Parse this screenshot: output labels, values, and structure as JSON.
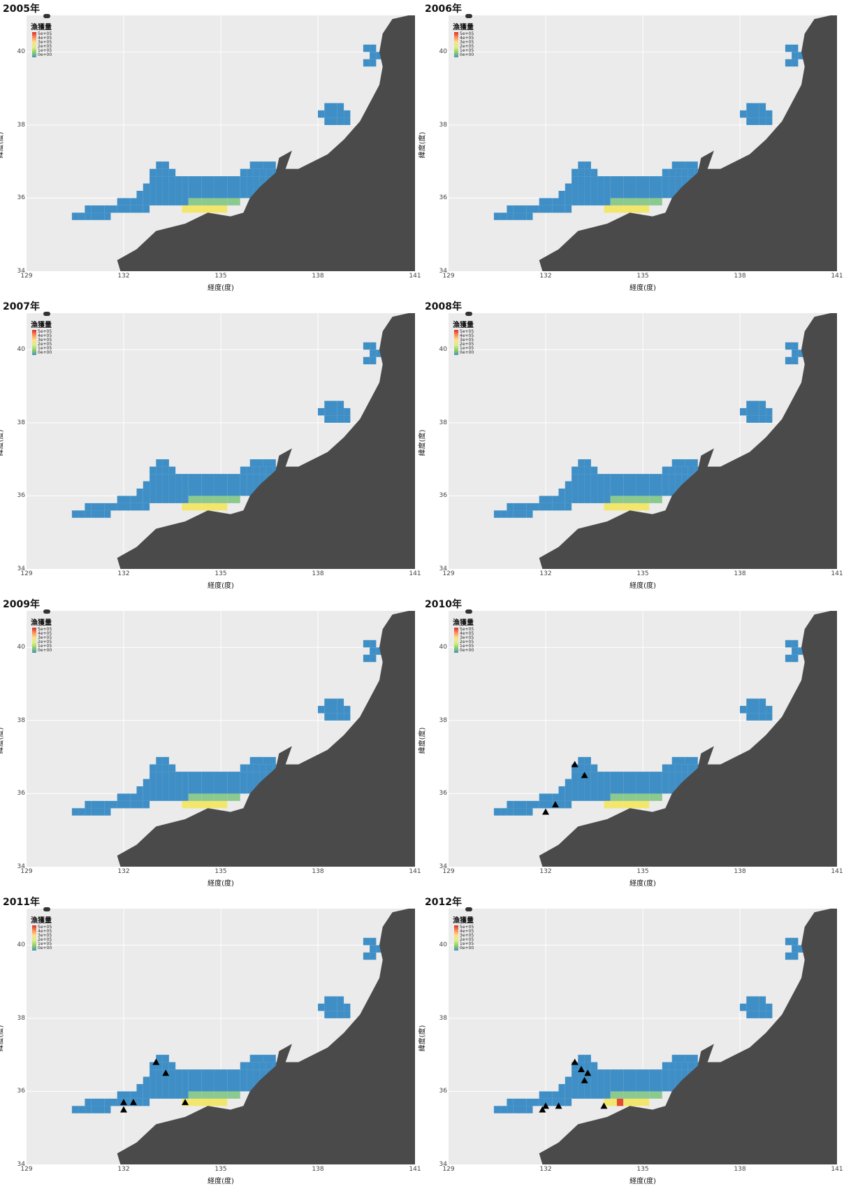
{
  "axis": {
    "x_label": "経度(度)",
    "y_label": "緯度(度)",
    "x_ticks": [
      "129",
      "132",
      "135",
      "138",
      "141"
    ],
    "y_ticks": [
      "34",
      "36",
      "38",
      "40"
    ]
  },
  "legend": {
    "title": "漁獲量",
    "labels": [
      "5e+05",
      "4e+05",
      "3e+05",
      "2e+05",
      "1e+05",
      "0e+00"
    ]
  },
  "colors": {
    "land": "#4a4a4a",
    "sea": "#ebebeb",
    "low": "#3f8fc6",
    "mid": "#8cc98f",
    "high": "#f3e66d",
    "peak": "#e34a33"
  },
  "panels": [
    {
      "year": "2005年",
      "triangles": []
    },
    {
      "year": "2006年",
      "triangles": []
    },
    {
      "year": "2007年",
      "triangles": []
    },
    {
      "year": "2008年",
      "triangles": []
    },
    {
      "year": "2009年",
      "triangles": []
    },
    {
      "year": "2010年",
      "triangles": [
        [
          132.9,
          36.8
        ],
        [
          133.2,
          36.5
        ],
        [
          132.3,
          35.7
        ],
        [
          132.0,
          35.5
        ]
      ]
    },
    {
      "year": "2011年",
      "triangles": [
        [
          132.0,
          35.7
        ],
        [
          132.0,
          35.5
        ],
        [
          132.3,
          35.7
        ],
        [
          133.0,
          36.8
        ],
        [
          133.3,
          36.5
        ],
        [
          133.9,
          35.7
        ]
      ]
    },
    {
      "year": "2012年",
      "triangles": [
        [
          132.9,
          36.8
        ],
        [
          133.1,
          36.6
        ],
        [
          133.3,
          36.5
        ],
        [
          133.2,
          36.3
        ],
        [
          132.0,
          35.6
        ],
        [
          131.9,
          35.5
        ],
        [
          132.4,
          35.6
        ],
        [
          133.8,
          35.6
        ]
      ]
    }
  ]
}
